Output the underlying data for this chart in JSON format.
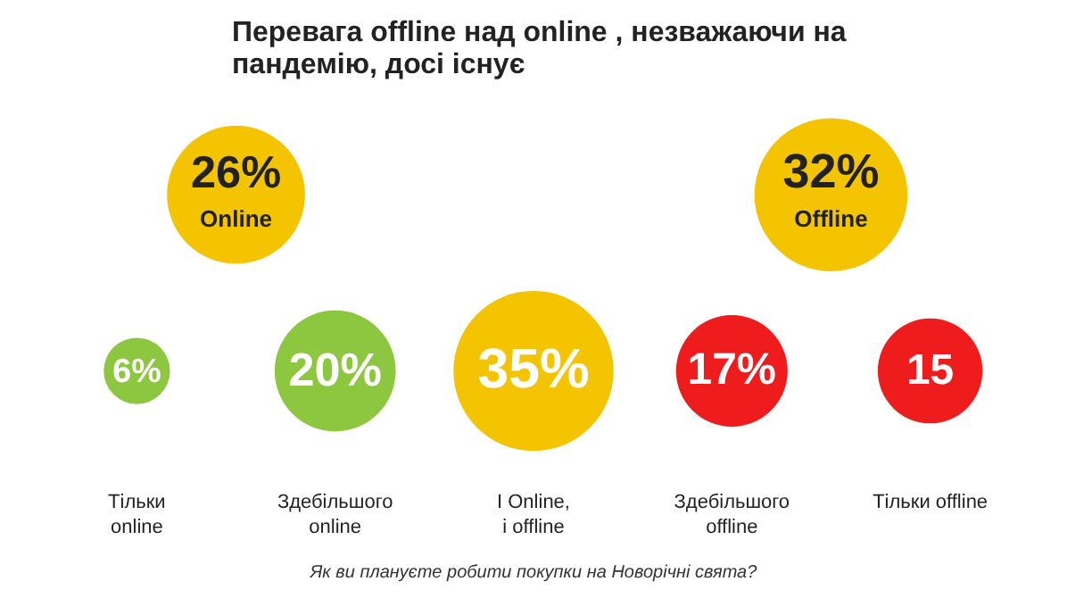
{
  "chart_data": {
    "type": "other",
    "title": "Перевага offline над online , незважаючи на пандемію, досі існує",
    "categories": [
      "Тільки\nonline",
      "Здебільшого\nonline",
      "І Online,\nі offline",
      "Здебільшого\noffline",
      "Тільки offline"
    ],
    "series": [
      {
        "values": [
          6,
          20,
          35,
          17,
          15
        ],
        "colors": [
          "#8dc63f",
          "#8dc63f",
          "#f5c400",
          "#ee1c1c",
          "#ee1c1c"
        ],
        "value_labels": [
          "6%",
          "20%",
          "35%",
          "17%",
          "15"
        ]
      },
      {
        "name": "Online",
        "color": "#f5c400",
        "values": [
          26,
          null,
          null,
          null,
          null
        ],
        "value_labels": [
          "26%",
          null,
          null,
          null,
          null
        ]
      },
      {
        "name": "Offline",
        "color": "#f5c400",
        "values": [
          null,
          null,
          null,
          32,
          null
        ],
        "value_labels": [
          null,
          null,
          null,
          "32%",
          null
        ]
      }
    ],
    "annotations": [
      "Як ви плануєте робити покупки на Новорічні свята?"
    ]
  }
}
